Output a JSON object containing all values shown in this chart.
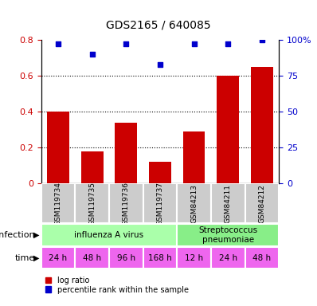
{
  "title": "GDS2165 / 640085",
  "samples": [
    "GSM119734",
    "GSM119735",
    "GSM119736",
    "GSM119737",
    "GSM84213",
    "GSM84211",
    "GSM84212"
  ],
  "log_ratio": [
    0.4,
    0.18,
    0.34,
    0.12,
    0.29,
    0.6,
    0.65
  ],
  "percentile_rank": [
    97,
    90,
    97,
    83,
    97,
    97,
    100
  ],
  "bar_color": "#cc0000",
  "dot_color": "#0000cc",
  "ylim_left": [
    0,
    0.8
  ],
  "ylim_right": [
    0,
    100
  ],
  "yticks_left": [
    0,
    0.2,
    0.4,
    0.6,
    0.8
  ],
  "ytick_labels_left": [
    "0",
    "0.2",
    "0.4",
    "0.6",
    "0.8"
  ],
  "yticks_right": [
    0,
    25,
    50,
    75,
    100
  ],
  "ytick_labels_right": [
    "0",
    "25",
    "50",
    "75",
    "100%"
  ],
  "infection_groups": [
    {
      "label": "influenza A virus",
      "start": 0,
      "end": 4,
      "color": "#aaffaa"
    },
    {
      "label": "Streptococcus\npneumoniae",
      "start": 4,
      "end": 7,
      "color": "#88ee88"
    }
  ],
  "time_labels": [
    "24 h",
    "48 h",
    "96 h",
    "168 h",
    "12 h",
    "24 h",
    "48 h"
  ],
  "time_color": "#ee66ee",
  "sample_bg_color": "#cccccc",
  "tick_label_color_left": "#cc0000",
  "tick_label_color_right": "#0000cc",
  "legend_red_label": "log ratio",
  "legend_blue_label": "percentile rank within the sample",
  "bg_color": "#ffffff"
}
